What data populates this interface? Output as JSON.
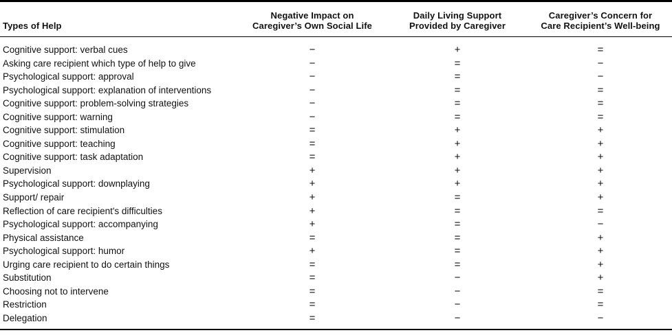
{
  "table": {
    "columns": [
      {
        "label": "Types of Help"
      },
      {
        "line1": "Negative Impact on",
        "line2": "Caregiver’s Own Social Life"
      },
      {
        "line1": "Daily Living Support",
        "line2": "Provided by Caregiver"
      },
      {
        "line1": "Caregiver’s Concern for",
        "line2": "Care Recipient’s Well-being"
      }
    ],
    "rows": [
      {
        "type": "Cognitive support: verbal cues",
        "values": [
          "−",
          "+",
          "="
        ]
      },
      {
        "type": "Asking care recipient which type of help to give",
        "values": [
          "−",
          "=",
          "−"
        ]
      },
      {
        "type": "Psychological support: approval",
        "values": [
          "−",
          "=",
          "−"
        ]
      },
      {
        "type": "Psychological support: explanation of interventions",
        "values": [
          "−",
          "=",
          "="
        ]
      },
      {
        "type": "Cognitive support: problem-solving strategies",
        "values": [
          "−",
          "=",
          "="
        ]
      },
      {
        "type": "Cognitive support: warning",
        "values": [
          "−",
          "=",
          "="
        ]
      },
      {
        "type": "Cognitive support: stimulation",
        "values": [
          "=",
          "+",
          "+"
        ]
      },
      {
        "type": "Cognitive support: teaching",
        "values": [
          "=",
          "+",
          "+"
        ]
      },
      {
        "type": "Cognitive support: task adaptation",
        "values": [
          "=",
          "+",
          "+"
        ]
      },
      {
        "type": "Supervision",
        "values": [
          "+",
          "+",
          "+"
        ]
      },
      {
        "type": "Psychological support: downplaying",
        "values": [
          "+",
          "+",
          "+"
        ]
      },
      {
        "type": "Support/ repair",
        "values": [
          "+",
          "=",
          "+"
        ]
      },
      {
        "type": "Reflection of care recipient's difficulties",
        "values": [
          "+",
          "=",
          "="
        ]
      },
      {
        "type": "Psychological support: accompanying",
        "values": [
          "+",
          "=",
          "−"
        ]
      },
      {
        "type": "Physical assistance",
        "values": [
          "=",
          "=",
          "+"
        ]
      },
      {
        "type": "Psychological support: humor",
        "values": [
          "+",
          "=",
          "+"
        ]
      },
      {
        "type": "Urging care recipient to do certain things",
        "values": [
          "=",
          "=",
          "+"
        ]
      },
      {
        "type": "Substitution",
        "values": [
          "=",
          "−",
          "+"
        ]
      },
      {
        "type": "Choosing not to intervene",
        "values": [
          "=",
          "−",
          "="
        ]
      },
      {
        "type": "Restriction",
        "values": [
          "=",
          "−",
          "="
        ]
      },
      {
        "type": "Delegation",
        "values": [
          "=",
          "−",
          "−"
        ]
      }
    ]
  }
}
